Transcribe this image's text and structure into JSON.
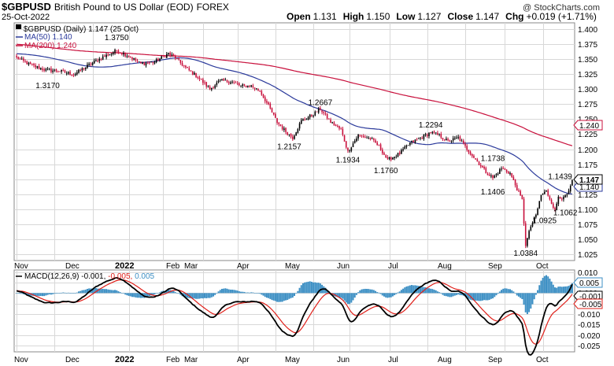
{
  "header": {
    "symbol": "$GBPUSD",
    "name": "British Pound to US Dollar (EOD)",
    "exchange": "FOREX",
    "date": "25-Oct-2022",
    "watermark": "@ StockCharts.com",
    "open_label": "Open",
    "open": "1.131",
    "high_label": "High",
    "high": "1.150",
    "low_label": "Low",
    "low": "1.127",
    "close_label": "Close",
    "close": "1.147",
    "chg_label": "Chg",
    "chg": "+0.019 (+1.71%)"
  },
  "legend": {
    "price": "▀ $GBPUSD (Daily) 1.147 (25 Oct)",
    "ma50": "MA(50) 1.140",
    "ma200": "MA(200) 1.240"
  },
  "macd_legend": {
    "part1": "MACD(12,26,9) -0.001,",
    "part2": " -0.005,",
    "part3": " 0.005"
  },
  "colors": {
    "up": "#000000",
    "down": "#c8103c",
    "ma50": "#2b3a9b",
    "ma200": "#c8103c",
    "macd": "#000000",
    "signal": "#e0201a",
    "hist": "#3c8fc4"
  },
  "chart_data": [
    {
      "type": "candlestick",
      "title": "$GBPUSD British Pound to US Dollar (EOD) FOREX",
      "x_labels": [
        "Nov",
        "Dec",
        "2022",
        "Feb",
        "Mar",
        "Apr",
        "May",
        "Jun",
        "Jul",
        "Aug",
        "Sep",
        "Oct"
      ],
      "y_ticks": [
        1.025,
        1.05,
        1.075,
        1.1,
        1.125,
        1.15,
        1.175,
        1.2,
        1.225,
        1.25,
        1.275,
        1.3,
        1.325,
        1.35,
        1.375,
        1.4
      ],
      "ylim": [
        1.015,
        1.41
      ],
      "close_anchors": [
        [
          0,
          1.352
        ],
        [
          8,
          1.34
        ],
        [
          17,
          1.3315
        ],
        [
          25,
          1.33
        ],
        [
          33,
          1.324
        ],
        [
          42,
          1.34
        ],
        [
          50,
          1.353
        ],
        [
          58,
          1.364
        ],
        [
          65,
          1.355
        ],
        [
          72,
          1.342
        ],
        [
          80,
          1.345
        ],
        [
          88,
          1.359
        ],
        [
          92,
          1.352
        ],
        [
          98,
          1.335
        ],
        [
          105,
          1.32
        ],
        [
          112,
          1.3
        ],
        [
          118,
          1.314
        ],
        [
          125,
          1.312
        ],
        [
          130,
          1.305
        ],
        [
          136,
          1.305
        ],
        [
          141,
          1.297
        ],
        [
          146,
          1.272
        ],
        [
          151,
          1.245
        ],
        [
          155,
          1.232
        ],
        [
          160,
          1.219
        ],
        [
          165,
          1.247
        ],
        [
          172,
          1.258
        ],
        [
          176,
          1.267
        ],
        [
          182,
          1.245
        ],
        [
          188,
          1.232
        ],
        [
          192,
          1.196
        ],
        [
          198,
          1.223
        ],
        [
          205,
          1.218
        ],
        [
          210,
          1.205
        ],
        [
          215,
          1.182
        ],
        [
          222,
          1.193
        ],
        [
          228,
          1.21
        ],
        [
          235,
          1.22
        ],
        [
          240,
          1.228
        ],
        [
          245,
          1.223
        ],
        [
          250,
          1.213
        ],
        [
          256,
          1.219
        ],
        [
          262,
          1.197
        ],
        [
          266,
          1.183
        ],
        [
          272,
          1.162
        ],
        [
          276,
          1.152
        ],
        [
          281,
          1.168
        ],
        [
          286,
          1.16
        ],
        [
          290,
          1.134
        ],
        [
          293,
          1.115
        ],
        [
          295,
          1.041
        ],
        [
          298,
          1.072
        ],
        [
          301,
          1.09
        ],
        [
          304,
          1.124
        ],
        [
          307,
          1.13
        ],
        [
          310,
          1.112
        ],
        [
          312,
          1.097
        ],
        [
          314,
          1.122
        ],
        [
          317,
          1.118
        ],
        [
          320,
          1.128
        ],
        [
          322,
          1.147
        ]
      ],
      "annotations": [
        {
          "label": "1.3750",
          "day": 58,
          "price": 1.375,
          "pos": "above"
        },
        {
          "label": "1.3170",
          "day": 18,
          "price": 1.317,
          "pos": "below"
        },
        {
          "label": "1.2667",
          "day": 176,
          "price": 1.2667,
          "pos": "above"
        },
        {
          "label": "1.2157",
          "day": 158,
          "price": 1.2157,
          "pos": "below"
        },
        {
          "label": "1.1934",
          "day": 192,
          "price": 1.1934,
          "pos": "below"
        },
        {
          "label": "1.1760",
          "day": 214,
          "price": 1.176,
          "pos": "below"
        },
        {
          "label": "1.2294",
          "day": 240,
          "price": 1.2294,
          "pos": "above"
        },
        {
          "label": "1.1738",
          "day": 276,
          "price": 1.1738,
          "pos": "above"
        },
        {
          "label": "1.1406",
          "day": 276,
          "price": 1.1406,
          "pos": "below"
        },
        {
          "label": "1.1439",
          "day": 315,
          "price": 1.1439,
          "pos": "above"
        },
        {
          "label": "1.0925",
          "day": 306,
          "price": 1.0925,
          "pos": "below"
        },
        {
          "label": "1.1062",
          "day": 318,
          "price": 1.1062,
          "pos": "below"
        },
        {
          "label": "1.0384",
          "day": 295,
          "price": 1.0384,
          "pos": "below"
        }
      ],
      "last_tags": [
        {
          "label": "1.147",
          "value": 1.147,
          "style": "price"
        },
        {
          "label": "1.140",
          "value": 1.14,
          "style": "ma50"
        },
        {
          "label": "1.240",
          "value": 1.24,
          "style": "ma200"
        }
      ]
    },
    {
      "type": "macd",
      "title": "MACD(12,26,9)",
      "x_labels": [
        "Nov",
        "Dec",
        "2022",
        "Feb",
        "Mar",
        "Apr",
        "May",
        "Jun",
        "Jul",
        "Aug",
        "Sep",
        "Oct"
      ],
      "y_ticks": [
        0.01,
        0.005,
        0.0,
        -0.005,
        -0.01,
        -0.015,
        -0.02,
        -0.025
      ],
      "ylim": [
        -0.028,
        0.011
      ],
      "last_tags": [
        {
          "label": "0.005",
          "value": 0.005,
          "style": "hist"
        },
        {
          "label": "-0.001",
          "value": -0.001,
          "style": "macd"
        },
        {
          "label": "-0.005",
          "value": -0.005,
          "style": "signal"
        }
      ]
    }
  ]
}
